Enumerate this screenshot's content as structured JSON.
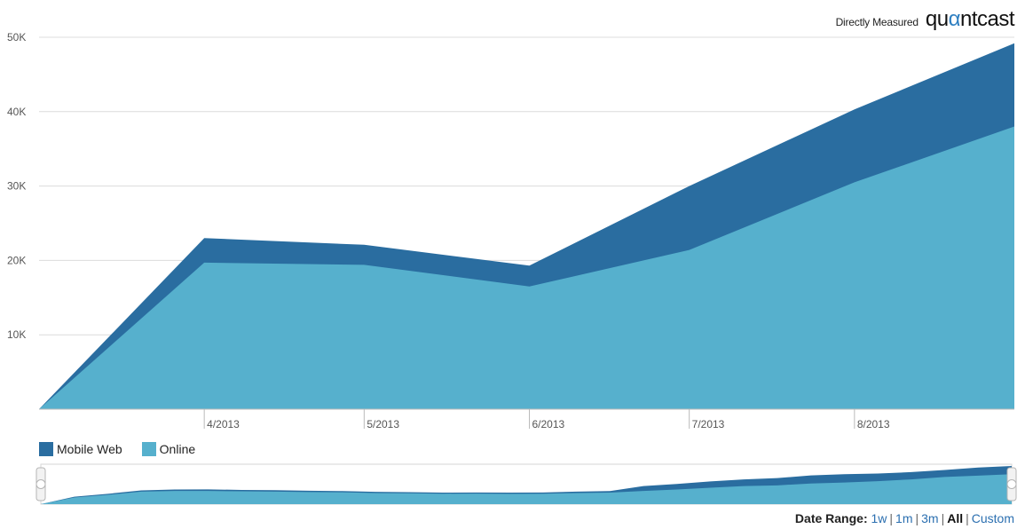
{
  "header": {
    "directly_measured": "Directly Measured",
    "logo_parts": [
      "qu",
      "α",
      "ntcast"
    ],
    "logo_accent_color": "#2f7fc1"
  },
  "legend": [
    {
      "label": "Mobile Web",
      "color": "#2a6da0"
    },
    {
      "label": "Online",
      "color": "#56b0cd"
    }
  ],
  "date_range": {
    "label": "Date Range:",
    "options": [
      {
        "label": "1w",
        "active": false
      },
      {
        "label": "1m",
        "active": false
      },
      {
        "label": "3m",
        "active": false
      },
      {
        "label": "All",
        "active": true
      },
      {
        "label": "Custom",
        "active": false
      }
    ]
  },
  "chart_data": {
    "type": "area",
    "stacked": true,
    "x": [
      "2013-03-01",
      "2013-04-01",
      "2013-05-01",
      "2013-06-01",
      "2013-07-01",
      "2013-08-01",
      "2013-08-31"
    ],
    "x_ticks": [
      {
        "date": "2013-04-01",
        "label": "4/2013"
      },
      {
        "date": "2013-05-01",
        "label": "5/2013"
      },
      {
        "date": "2013-06-01",
        "label": "6/2013"
      },
      {
        "date": "2013-07-01",
        "label": "7/2013"
      },
      {
        "date": "2013-08-01",
        "label": "8/2013"
      }
    ],
    "y_ticks": [
      {
        "value": 10000,
        "label": "10K"
      },
      {
        "value": 20000,
        "label": "20K"
      },
      {
        "value": 30000,
        "label": "30K"
      },
      {
        "value": 40000,
        "label": "40K"
      },
      {
        "value": 50000,
        "label": "50K"
      }
    ],
    "ylim": [
      0,
      50000
    ],
    "grid": true,
    "series": [
      {
        "name": "Online",
        "color": "#56b0cd",
        "values": [
          0,
          19700,
          19400,
          16500,
          21400,
          30500,
          38000
        ]
      },
      {
        "name": "Mobile Web",
        "color": "#2a6da0",
        "values": [
          0,
          3300,
          2700,
          2800,
          8600,
          9800,
          11200
        ]
      }
    ],
    "navigator": {
      "fill_colors": [
        "#56b0cd",
        "#2a6da0"
      ],
      "online": [
        0,
        4800,
        6700,
        9000,
        9500,
        9500,
        9200,
        9000,
        8700,
        8500,
        8000,
        7800,
        7500,
        7600,
        7400,
        7500,
        8000,
        8300,
        9500,
        10500,
        11800,
        13000,
        13500,
        14800,
        15500,
        16500,
        17800,
        19500,
        20500,
        21500
      ],
      "mobile": [
        0,
        500,
        700,
        900,
        1000,
        1100,
        1000,
        1000,
        950,
        900,
        850,
        800,
        750,
        800,
        850,
        900,
        1000,
        1100,
        3500,
        4000,
        4500,
        4800,
        5200,
        5800,
        6000,
        5500,
        5200,
        5000,
        5800,
        5900
      ]
    }
  }
}
